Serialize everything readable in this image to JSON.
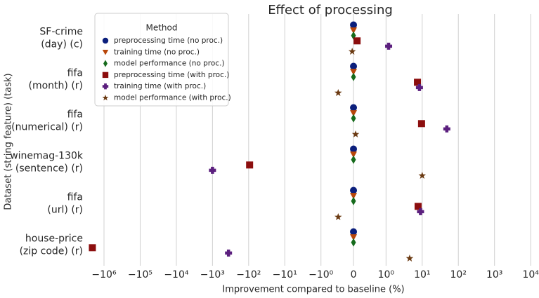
{
  "chart_data": {
    "type": "scatter",
    "title": "Effect of processing",
    "x_label": "Improvement compared to baseline (%)",
    "y_label": "Dataset (string feature) (task)",
    "x_scale": "symlog",
    "categories": [
      [
        "SF-crime",
        "(day) (c)"
      ],
      [
        "fifa",
        "(month) (r)"
      ],
      [
        "fifa",
        "(numerical) (r)"
      ],
      [
        "winemag-130k",
        "(sentence) (r)"
      ],
      [
        "fifa",
        "(url) (r)"
      ],
      [
        "house-price",
        "(zip code) (r)"
      ]
    ],
    "legend_title": "Method",
    "legend_position": "upper left",
    "grid": true,
    "xlim": [
      -2800000,
      17000
    ],
    "xticks": [
      {
        "value": -1000000,
        "label": "−10⁶"
      },
      {
        "value": -100000,
        "label": "−10⁵"
      },
      {
        "value": -10000,
        "label": "−10⁴"
      },
      {
        "value": -1000,
        "label": "−10³"
      },
      {
        "value": -100,
        "label": "−10²"
      },
      {
        "value": -10,
        "label": "−10¹"
      },
      {
        "value": -1,
        "label": "−10⁰"
      },
      0,
      {
        "value": 1,
        "label": "10⁰"
      },
      {
        "value": 10,
        "label": "10¹"
      },
      {
        "value": 100,
        "label": "10²"
      },
      {
        "value": 1000,
        "label": "10³"
      },
      {
        "value": 10000,
        "label": "10⁴"
      }
    ],
    "series": [
      {
        "name": "preprocessing time (no proc.)",
        "color": "#0b1f7c",
        "marker": "circle",
        "values": [
          0,
          0,
          0,
          0,
          0,
          0
        ]
      },
      {
        "name": "training time (no proc.)",
        "color": "#b8460a",
        "marker": "triangle",
        "values": [
          0,
          0,
          0,
          0,
          0,
          0
        ]
      },
      {
        "name": "model performance (no proc.)",
        "color": "#166b1c",
        "marker": "diamond",
        "values": [
          0,
          0,
          0,
          0,
          0,
          0
        ]
      },
      {
        "name": "preprocessing time (with proc.)",
        "color": "#8c0e0e",
        "marker": "square",
        "values": [
          0.11,
          7.4,
          9.6,
          -94,
          7.7,
          -2100000
        ]
      },
      {
        "name": "training time (with proc.)",
        "color": "#5b1f7e",
        "marker": "plus",
        "values": [
          1.18,
          8.4,
          48,
          -1000,
          9,
          -360
        ]
      },
      {
        "name": "model performance (with proc.)",
        "color": "#6b3a12",
        "marker": "star",
        "values": [
          -0.04,
          -0.47,
          0.065,
          10,
          -0.47,
          4.5
        ]
      }
    ]
  }
}
